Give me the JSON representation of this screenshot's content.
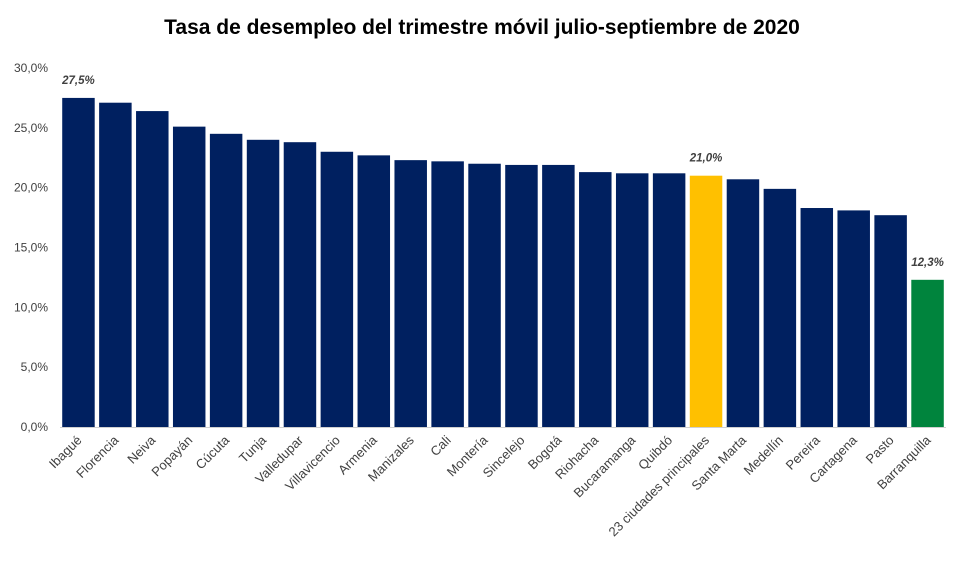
{
  "chart_data": {
    "type": "bar",
    "title": "Tasa de desempleo del trimestre móvil julio-septiembre de 2020",
    "xlabel": "",
    "ylabel": "",
    "ylim": [
      0,
      30
    ],
    "yticks": [
      0,
      5,
      10,
      15,
      20,
      25,
      30
    ],
    "ytick_labels": [
      "0,0%",
      "5,0%",
      "10,0%",
      "15,0%",
      "20,0%",
      "25,0%",
      "30,0%"
    ],
    "grid": false,
    "legend": "none",
    "colors": {
      "default": "#002060",
      "highlight_total": "#FFC000",
      "highlight_min": "#00843D"
    },
    "categories": [
      "Ibagué",
      "Florencia",
      "Neiva",
      "Popayán",
      "Cúcuta",
      "Tunja",
      "Valledupar",
      "Villavicencio",
      "Armenia",
      "Manizales",
      "Cali",
      "Montería",
      "Sincelejo",
      "Bogotá",
      "Riohacha",
      "Bucaramanga",
      "Quibdó",
      "23 ciudades principales",
      "Santa Marta",
      "Medellín",
      "Pereira",
      "Cartagena",
      "Pasto",
      "Barranquilla"
    ],
    "values": [
      27.5,
      27.1,
      26.4,
      25.1,
      24.5,
      24.0,
      23.8,
      23.0,
      22.7,
      22.3,
      22.2,
      22.0,
      21.9,
      21.9,
      21.3,
      21.2,
      21.2,
      21.0,
      20.7,
      19.9,
      18.3,
      18.1,
      17.7,
      12.3
    ],
    "bar_colors": [
      "#002060",
      "#002060",
      "#002060",
      "#002060",
      "#002060",
      "#002060",
      "#002060",
      "#002060",
      "#002060",
      "#002060",
      "#002060",
      "#002060",
      "#002060",
      "#002060",
      "#002060",
      "#002060",
      "#002060",
      "#FFC000",
      "#002060",
      "#002060",
      "#002060",
      "#002060",
      "#002060",
      "#00843D"
    ],
    "data_labels": [
      {
        "index": 0,
        "text": "27,5%"
      },
      {
        "index": 17,
        "text": "21,0%"
      },
      {
        "index": 23,
        "text": "12,3%"
      }
    ]
  }
}
